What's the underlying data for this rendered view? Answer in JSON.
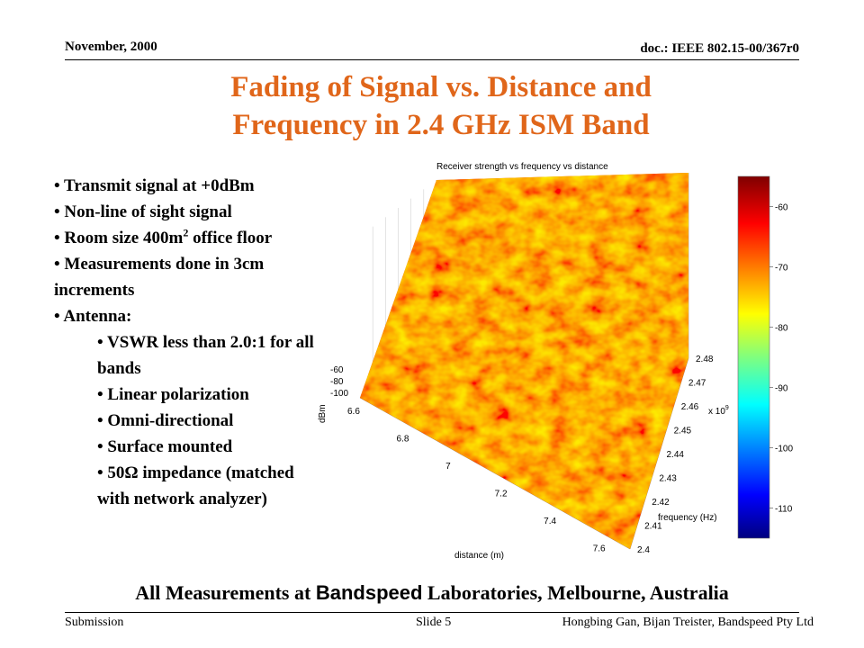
{
  "header": {
    "date": "November, 2000",
    "doc_id": "doc.: IEEE 802.15-00/367r0"
  },
  "title": {
    "line1": "Fading of Signal vs. Distance and",
    "line2": "Frequency in 2.4 GHz ISM Band"
  },
  "bullets": {
    "b1": "• Transmit signal at +0dBm",
    "b2": "• Non-line of sight signal",
    "b3_pre": "• Room size 400m",
    "b3_sup": "2",
    "b3_post": " office floor",
    "b4": "• Measurements done in 3cm increments",
    "b5": "• Antenna:",
    "s1": "• VSWR less than 2.0:1 for all bands",
    "s2": "• Linear polarization",
    "s3": "• Omni-directional",
    "s4": "• Surface mounted",
    "s5": "• 50Ω impedance (matched with network analyzer)"
  },
  "chart_data": {
    "type": "heatmap",
    "title": "Receiver strength vs frequency vs distance",
    "xlabel": "distance (m)",
    "ylabel": "frequency (Hz)",
    "zlabel": "dBm",
    "x_ticks": [
      "6.6",
      "6.8",
      "7",
      "7.2",
      "7.4",
      "7.6"
    ],
    "y_ticks": [
      "2.4",
      "2.41",
      "2.42",
      "2.43",
      "2.44",
      "2.45",
      "2.46",
      "2.47",
      "2.48"
    ],
    "y_multiplier": "x 10",
    "y_multiplier_exp": "9",
    "z_ticks": [
      "-60",
      "-80",
      "-100"
    ],
    "colorbar_ticks": [
      "-60",
      "-70",
      "-80",
      "-90",
      "-100",
      "-110"
    ],
    "x_range": [
      6.6,
      7.7
    ],
    "y_range": [
      2400000000.0,
      2480000000.0
    ],
    "colorbar_range": [
      -115,
      -55
    ]
  },
  "footer": {
    "pre": "All Measurements at ",
    "brand": "Bandspeed",
    "post": " Laboratories, Melbourne, Australia",
    "submission": "Submission",
    "slide": "Slide 5",
    "authors": "Hongbing Gan, Bijan Treister,  Bandspeed Pty Ltd"
  }
}
